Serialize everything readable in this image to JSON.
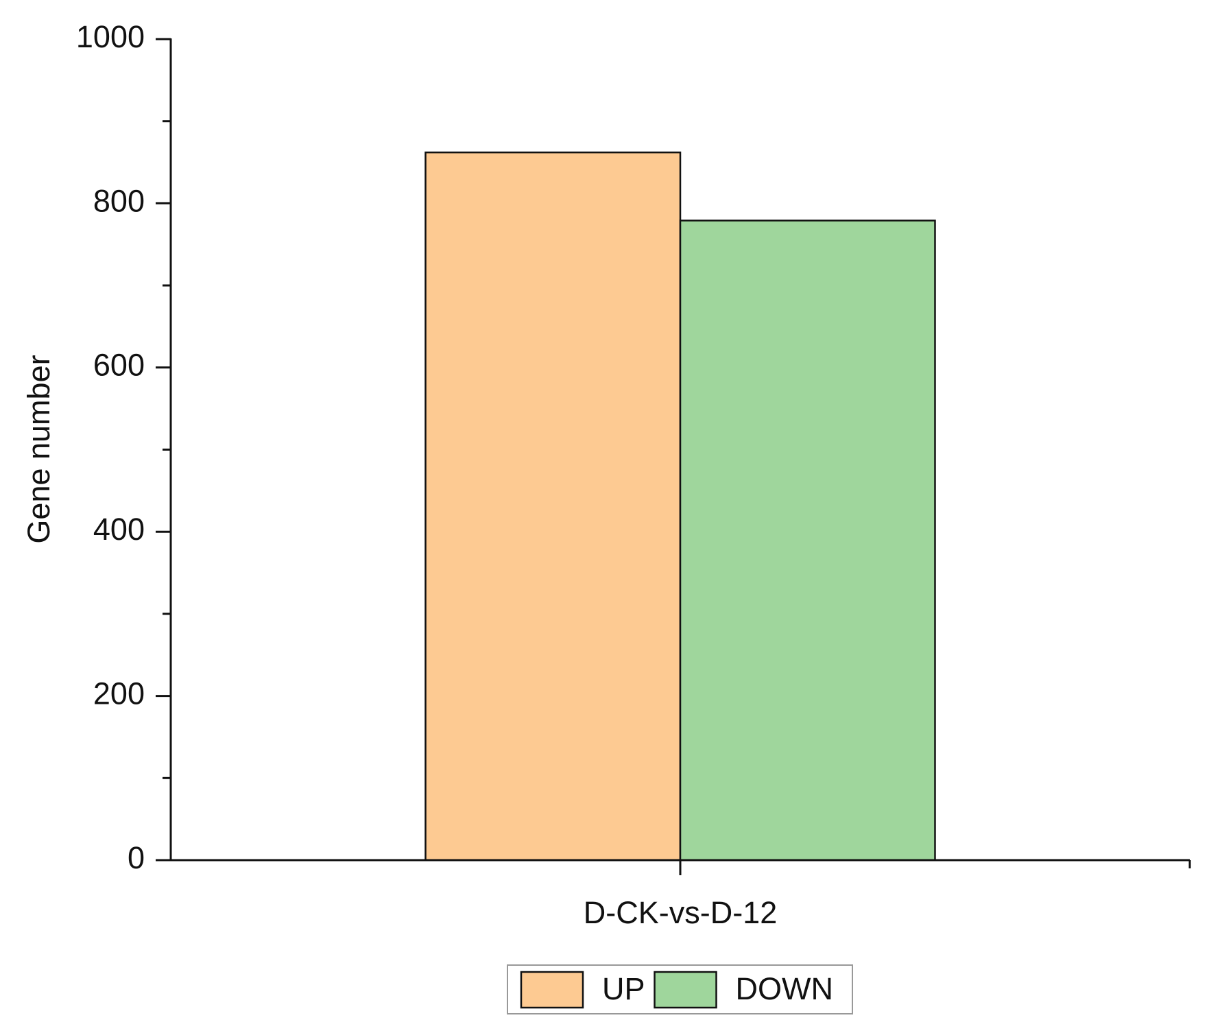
{
  "chart_data": {
    "type": "bar",
    "categories": [
      "D-CK-vs-D-12"
    ],
    "series": [
      {
        "name": "UP",
        "color": "#fdca92",
        "values": [
          862
        ]
      },
      {
        "name": "DOWN",
        "color": "#9fd69c",
        "values": [
          779
        ]
      }
    ],
    "y_label": "Gene number",
    "ylim": [
      0,
      1000
    ],
    "yticks": [
      0,
      200,
      400,
      600,
      800,
      1000
    ],
    "minor_yticks": [
      100,
      300,
      500,
      700,
      900
    ],
    "grid": false,
    "legend": "bottom"
  }
}
